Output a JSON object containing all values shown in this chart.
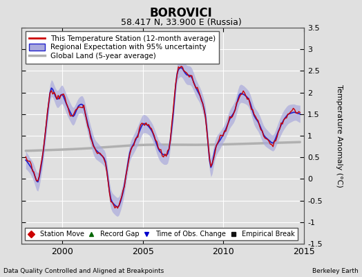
{
  "title": "BOROVICI",
  "subtitle": "58.417 N, 33.900 E (Russia)",
  "xlabel_left": "Data Quality Controlled and Aligned at Breakpoints",
  "xlabel_right": "Berkeley Earth",
  "ylabel": "Temperature Anomaly (°C)",
  "xlim": [
    1997.5,
    2015.0
  ],
  "ylim": [
    -1.5,
    3.5
  ],
  "yticks_right": [
    -1.5,
    -1.0,
    -0.5,
    0.0,
    0.5,
    1.0,
    1.5,
    2.0,
    2.5,
    3.0,
    3.5
  ],
  "ytick_labels_right": [
    "-1.5",
    "-1",
    "-0.5",
    "0",
    "0.5",
    "1",
    "1.5",
    "2",
    "2.5",
    "3",
    "3.5"
  ],
  "xticks": [
    2000,
    2005,
    2010,
    2015
  ],
  "background_color": "#e0e0e0",
  "plot_bg_color": "#e0e0e0",
  "grid_color": "#ffffff",
  "regional_color": "#2222cc",
  "regional_fill_color": "#aaaadd",
  "station_color": "#cc0000",
  "global_color": "#b0b0b0",
  "legend_items": [
    {
      "label": "This Temperature Station (12-month average)",
      "color": "#cc0000",
      "lw": 1.5
    },
    {
      "label": "Regional Expectation with 95% uncertainty",
      "color": "#2222cc",
      "lw": 1.5
    },
    {
      "label": "Global Land (5-year average)",
      "color": "#b0b0b0",
      "lw": 2.5
    }
  ],
  "marker_items": [
    {
      "label": "Station Move",
      "color": "#cc0000",
      "marker": "D"
    },
    {
      "label": "Record Gap",
      "color": "#006600",
      "marker": "^"
    },
    {
      "label": "Time of Obs. Change",
      "color": "#0000cc",
      "marker": "v"
    },
    {
      "label": "Empirical Break",
      "color": "#111111",
      "marker": "s"
    }
  ],
  "t_start": 1997.75,
  "t_end": 2014.75,
  "n_points": 204
}
